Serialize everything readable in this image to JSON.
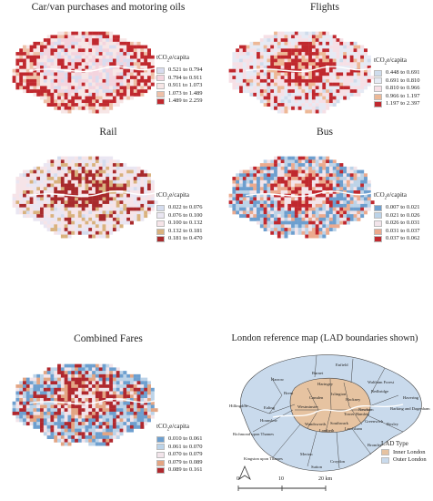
{
  "panels": {
    "car": {
      "title": "Car/van purchases and motoring oils",
      "legend_title": "tCO",
      "legend_unit": "e/capita",
      "colors": [
        "#d8dcef",
        "#f4d4de",
        "#f7e6e6",
        "#eec0a8",
        "#c0282e"
      ],
      "ranges": [
        "0.521 to 0.794",
        "0.794 to 0.911",
        "0.911 to 1.073",
        "1.073 to 1.489",
        "1.489 to 2.259"
      ]
    },
    "flights": {
      "title": "Flights",
      "legend_title": "tCO",
      "legend_unit": "e/capita",
      "colors": [
        "#cfdcec",
        "#e6eaf4",
        "#f6e0e6",
        "#edb896",
        "#c0282e"
      ],
      "ranges": [
        "0.448 to 0.691",
        "0.691 to 0.810",
        "0.810 to 0.966",
        "0.966 to 1.197",
        "1.197 to 2.397"
      ]
    },
    "rail": {
      "title": "Rail",
      "legend_title": "tCO",
      "legend_unit": "e/capita",
      "colors": [
        "#d4dcee",
        "#eae6f2",
        "#f6e4e8",
        "#d9b27e",
        "#a82a2c"
      ],
      "ranges": [
        "0.022 to 0.076",
        "0.076 to 0.100",
        "0.100 to 0.132",
        "0.132 to 0.181",
        "0.181 to 0.470"
      ]
    },
    "bus": {
      "title": "Bus",
      "legend_title": "tCO",
      "legend_unit": "e/capita",
      "colors": [
        "#6d9fcf",
        "#bcd3e8",
        "#f2e4ea",
        "#ecaa8e",
        "#c0282e"
      ],
      "ranges": [
        "0.007 to 0.021",
        "0.021 to 0.026",
        "0.026 to 0.031",
        "0.031 to 0.037",
        "0.037 to 0.062"
      ]
    },
    "fares": {
      "title": "Combined Fares",
      "legend_title": "tCO",
      "legend_unit": "e/capita",
      "colors": [
        "#6d9fcf",
        "#bcd3e8",
        "#f2e4ea",
        "#e3a583",
        "#b0282e"
      ],
      "ranges": [
        "0.010 to 0.061",
        "0.061 to 0.070",
        "0.070 to 0.079",
        "0.079 to 0.089",
        "0.089 to 0.161"
      ]
    },
    "reference": {
      "title": "London reference map (LAD boundaries shown)",
      "legend_title": "LAD Type",
      "types": [
        "Inner London",
        "Outer London"
      ],
      "type_colors": [
        "#e6c3a1",
        "#c9daec"
      ],
      "boroughs": [
        "Enfield",
        "Barnet",
        "Harrow",
        "Haringey",
        "Waltham Forest",
        "Redbridge",
        "Havering",
        "Hillingdon",
        "Brent",
        "Camden",
        "Islington",
        "Hackney",
        "Barking and Dagenham",
        "Ealing",
        "Westminster",
        "Newham",
        "Hounslow",
        "Tower Hamlets",
        "Greenwich",
        "Bexley",
        "Richmond upon Thames",
        "Southwark",
        "Lewisham",
        "Wandsworth",
        "Lambeth",
        "Kingston upon Thames",
        "Merton",
        "Croydon",
        "Bromley",
        "Sutton"
      ],
      "scale_labels": [
        "0",
        "10",
        "20 km"
      ]
    }
  }
}
